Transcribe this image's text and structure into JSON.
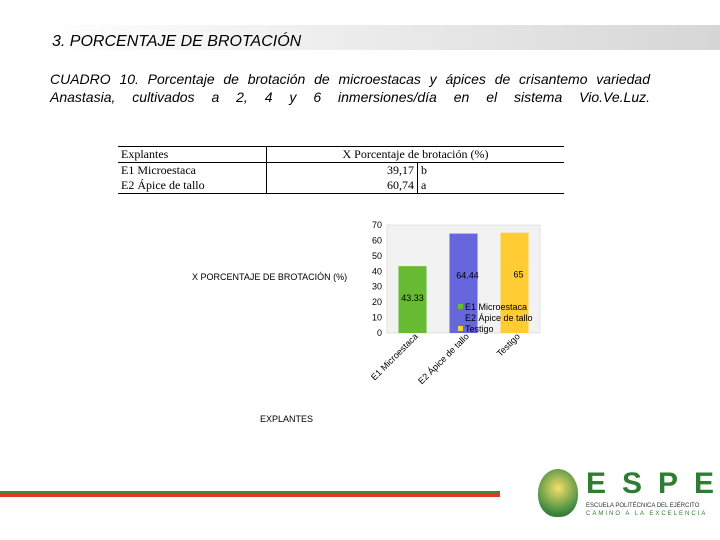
{
  "slide": {
    "title": "3. PORCENTAJE DE BROTACIÓN",
    "caption_line1": "CUADRO 10. Porcentaje de brotación de microestacas y ápices de crisantemo variedad",
    "caption_line2": "Anastasia, cultivados a 2, 4 y 6 inmersiones/día en el sistema Vio.Ve.Luz."
  },
  "table": {
    "header": [
      "Explantes",
      "X Porcentaje de brotación (%)"
    ],
    "rows": [
      {
        "explante": "E1 Microestaca",
        "value": "39,17",
        "sig": "b"
      },
      {
        "explante": "E2 Ápice de tallo",
        "value": "60,74",
        "sig": "a"
      }
    ]
  },
  "chart_data": {
    "type": "bar",
    "categories": [
      "E1 Microestaca",
      "E2 Ápice de tallo",
      "Testigo"
    ],
    "values": [
      43.33,
      64.44,
      65
    ],
    "data_labels": [
      "43.33",
      "64.44",
      "65"
    ],
    "colors": [
      "#66bb33",
      "#6666dd",
      "#ffcc33"
    ],
    "ylabel": "X PORCENTAJE DE BROTACIÓN (%)",
    "xlabel": "EXPLANTES",
    "ylim": [
      0,
      70
    ],
    "yticks": [
      "0",
      "10",
      "20",
      "30",
      "40",
      "50",
      "60",
      "70"
    ],
    "legend": [
      "E1 Microestaca",
      "E2 Ápice de tallo",
      "Testigo"
    ],
    "legend_position": "right",
    "grid": false
  },
  "logo": {
    "name": "ESPE",
    "sub1": "ESCUELA POLITÉCNICA DEL EJÉRCITO",
    "sub2": "CAMINO A LA EXCELENCIA",
    "icon": "espe-seal-icon"
  }
}
